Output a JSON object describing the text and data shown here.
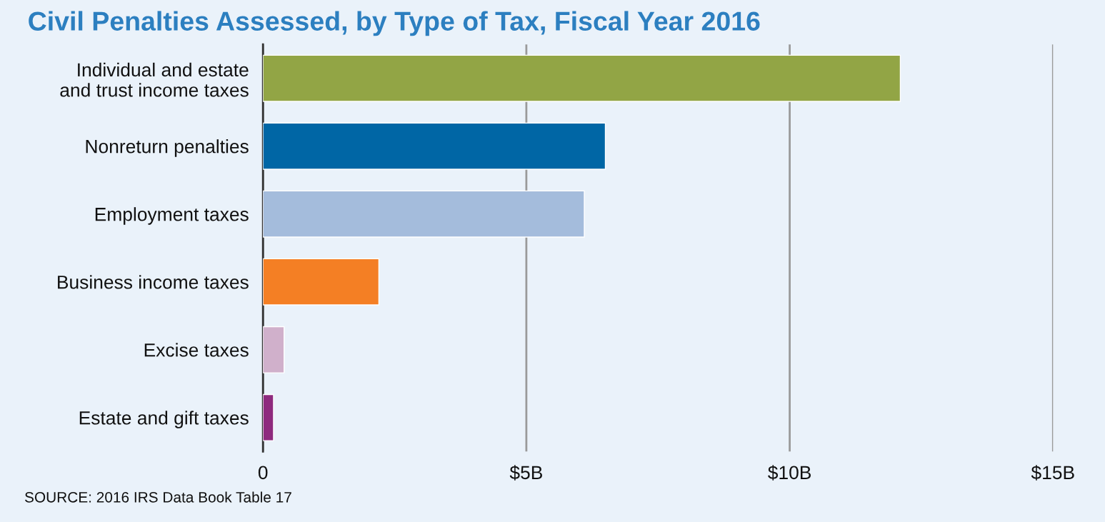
{
  "chart_data": {
    "type": "bar",
    "orientation": "horizontal",
    "title": "Civil Penalties Assessed, by Type of Tax, Fiscal Year 2016",
    "categories": [
      "Individual and estate\nand trust income taxes",
      "Nonreturn penalties",
      "Employment taxes",
      "Business income taxes",
      "Excise taxes",
      "Estate and gift taxes"
    ],
    "values": [
      12.1,
      6.5,
      6.1,
      2.2,
      0.4,
      0.2
    ],
    "colors": [
      "#92a545",
      "#0066a5",
      "#a4bcdc",
      "#f47f24",
      "#d0b0cb",
      "#8e2a7e"
    ],
    "xlim": [
      0,
      15
    ],
    "xticks": [
      0,
      {
        "value": 5,
        "label": "$5B"
      },
      {
        "value": 10,
        "label": "$10B"
      },
      {
        "value": 15,
        "label": "$15B"
      }
    ],
    "grid": "x",
    "annotations": [
      "SOURCE: 2016 IRS Data Book Table 17"
    ]
  }
}
